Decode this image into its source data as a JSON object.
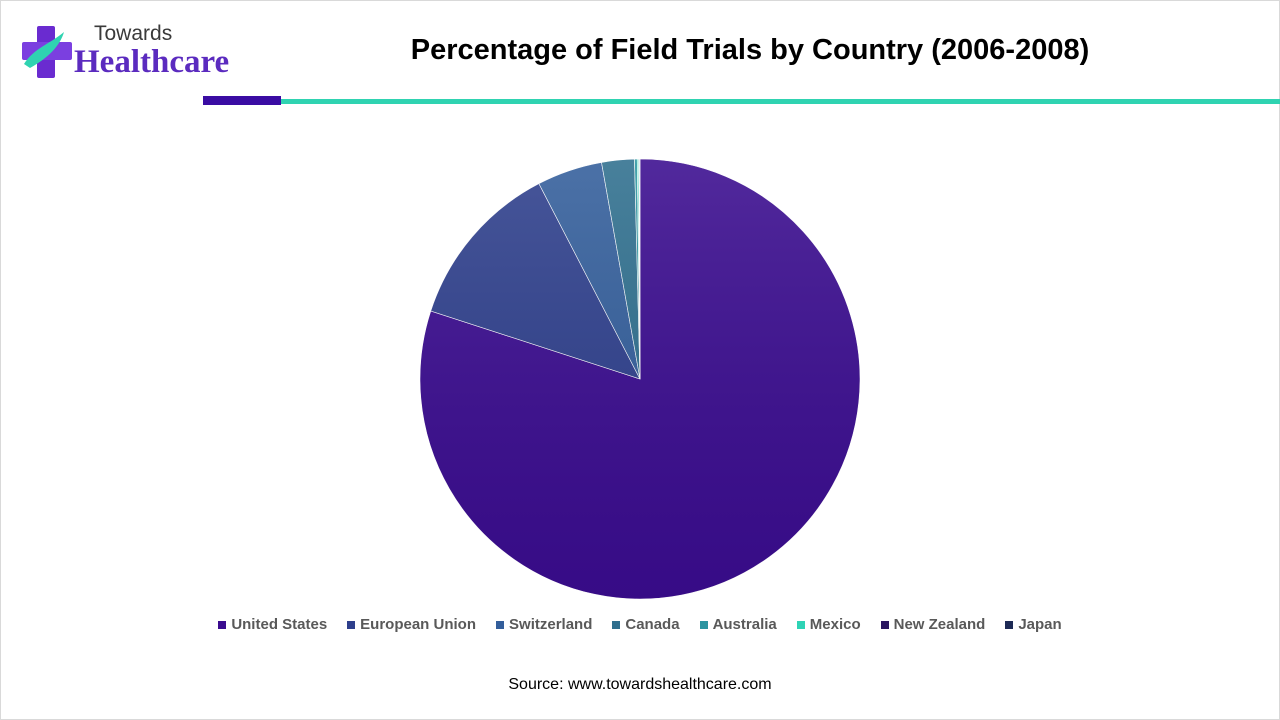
{
  "brand": {
    "line1": "Towards",
    "line2": "Healthcare"
  },
  "source": "Source: www.towardshealthcare.com",
  "colors": {
    "accent_purple": "#3a0ca3",
    "accent_teal": "#2fd3b1"
  },
  "chart_data": {
    "type": "pie",
    "title": "Percentage of Field Trials by Country (2006-2008)",
    "legend_position": "bottom",
    "categories": [
      "United States",
      "European Union",
      "Switzerland",
      "Canada",
      "Australia",
      "Mexico",
      "New Zealand",
      "Japan"
    ],
    "values": [
      80.0,
      12.4,
      4.8,
      2.4,
      0.2,
      0.1,
      0.05,
      0.05
    ],
    "colors": [
      "#3a0c8f",
      "#2e3f8c",
      "#335e9b",
      "#2f6f8e",
      "#2b94a0",
      "#2ed3b5",
      "#2a1660",
      "#1d2a55"
    ]
  }
}
